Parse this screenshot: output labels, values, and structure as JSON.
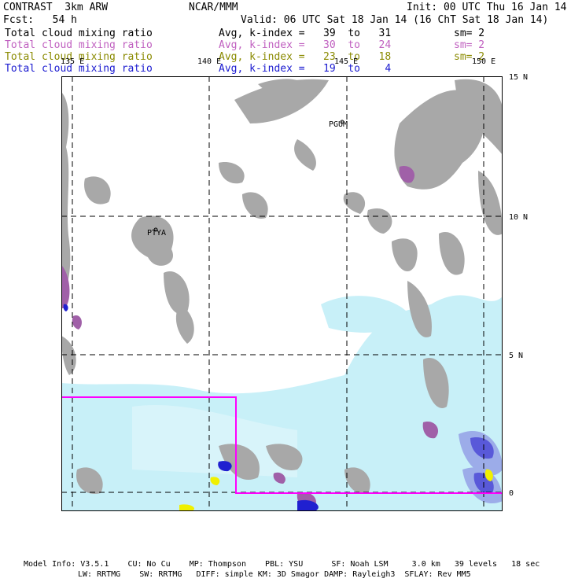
{
  "header": {
    "model": "CONTRAST  3km ARW",
    "center": "NCAR/MMM",
    "init": "Init: 00 UTC Thu 16 Jan 14",
    "fcst": "Fcst:   54 h",
    "valid": "Valid: 06 UTC Sat 18 Jan 14 (16 ChT Sat 18 Jan 14)"
  },
  "fields": [
    {
      "name": "Total cloud mixing ratio",
      "range": "Avg, k-index =   39  to   31",
      "sm": "sm= 2",
      "color": "#000000"
    },
    {
      "name": "Total cloud mixing ratio",
      "range": "Avg, k-index =   30  to   24",
      "sm": "sm= 2",
      "color": "#c060c0"
    },
    {
      "name": "Total cloud mixing ratio",
      "range": "Avg, k-index =   23  to   18",
      "sm": "sm= 2",
      "color": "#8a8a00"
    },
    {
      "name": "Total cloud mixing ratio",
      "range": "Avg, k-index =   19  to    4",
      "sm": "",
      "color": "#1a1ad0"
    }
  ],
  "map": {
    "lat_labels": [
      "15 N",
      "10 N",
      "5 N",
      "0"
    ],
    "lon_labels": [
      "135 E",
      "140 E",
      "145 E",
      "150 E"
    ],
    "places": [
      "PGUM",
      "PTYA"
    ],
    "colors": {
      "gray": "#a8a8a8",
      "purple": "#a060a8",
      "lightcyan": "#c8f0f8",
      "blue": "#2020d0",
      "magenta": "#ff00ff",
      "yellow": "#f0f000"
    }
  },
  "footer": {
    "line1": "Model Info: V3.5.1    CU: No Cu    MP: Thompson    PBL: YSU      SF: Noah LSM     3.0 km   39 levels   18 sec",
    "line2": "LW: RRTMG    SW: RRTMG   DIFF: simple KM: 3D Smagor DAMP: Rayleigh3  SFLAY: Rev MM5"
  }
}
